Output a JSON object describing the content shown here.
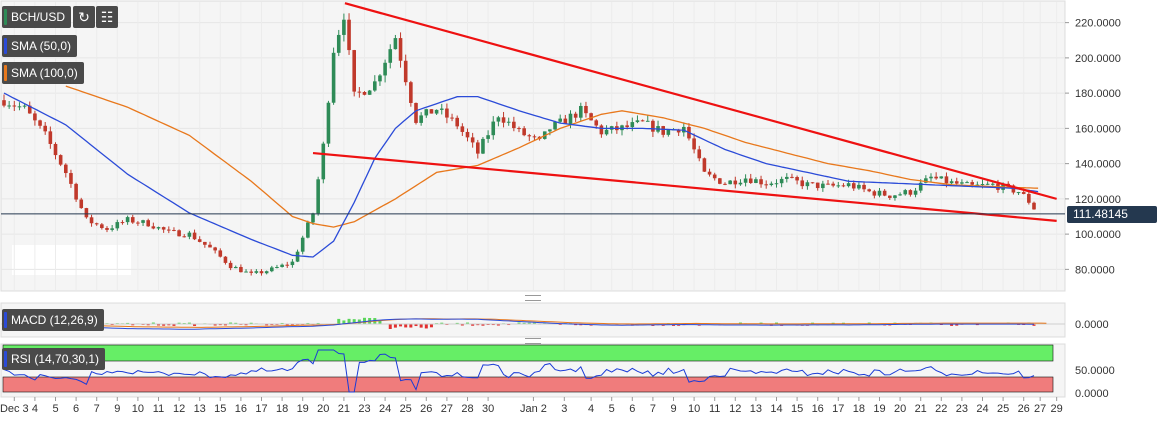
{
  "pair_label": "BCH/USD",
  "indicators": {
    "sma50": {
      "label": "SMA (50,0)",
      "color": "#2b4bd8"
    },
    "sma100": {
      "label": "SMA (100,0)",
      "color": "#e8781c"
    },
    "macd": {
      "label": "MACD (12,26,9)"
    },
    "rsi": {
      "label": "RSI (14,70,30,1)"
    }
  },
  "colors": {
    "up": "#2e8b57",
    "down": "#c0392b",
    "trend": "#ee1111",
    "rsi_high": "#66ee66",
    "rsi_low": "#f07c7c",
    "rsi_line": "#1a3bd6"
  },
  "last_price_label": "111.48145",
  "chart_data": {
    "type": "candlestick",
    "price_axis": {
      "ylim": [
        70,
        230
      ],
      "ticks": [
        "220.0000",
        "200.0000",
        "180.0000",
        "160.0000",
        "140.0000",
        "120.0000",
        "100.0000",
        "80.0000"
      ]
    },
    "macd_axis": {
      "ticks": [
        "0.0000"
      ]
    },
    "rsi_axis": {
      "ticks": [
        "50.0000",
        "0.0000"
      ]
    },
    "x_ticks": [
      "Dec 3",
      "4",
      "5",
      "6",
      "7",
      "9",
      "10",
      "11",
      "12",
      "13",
      "15",
      "16",
      "17",
      "18",
      "19",
      "20",
      "21",
      "23",
      "24",
      "25",
      "26",
      "27",
      "28",
      "30",
      "Jan 2",
      "3",
      "4",
      "5",
      "6",
      "7",
      "9",
      "10",
      "11",
      "12",
      "13",
      "14",
      "15",
      "16",
      "17",
      "18",
      "19",
      "20",
      "21",
      "22",
      "23",
      "24",
      "25",
      "26",
      "27",
      "29"
    ],
    "x_tick_positions": [
      0.5,
      1.5,
      2.5,
      3.5,
      4.5,
      5.5,
      6.5,
      7.5,
      8.5,
      9.5,
      10.5,
      11.5,
      12.5,
      13.5,
      14.5,
      15.5,
      16.5,
      17.5,
      18.5,
      19.5,
      20.5,
      21.5,
      22.5,
      23.5,
      25.7,
      27.2,
      28.5,
      29.5,
      30.5,
      31.5,
      32.5,
      33.5,
      34.5,
      35.5,
      36.5,
      37.5,
      38.5,
      39.5,
      40.5,
      41.5,
      42.5,
      43.5,
      44.5,
      45.5,
      46.5,
      47.5,
      48.5,
      49.5,
      50.3,
      51.1
    ],
    "day_anchors": [
      [
        0,
        176
      ],
      [
        1,
        171
      ],
      [
        2,
        156
      ],
      [
        3,
        135
      ],
      [
        4,
        108
      ],
      [
        5,
        103
      ],
      [
        6,
        108
      ],
      [
        7,
        106
      ],
      [
        8,
        101
      ],
      [
        9,
        100
      ],
      [
        10,
        92
      ],
      [
        11,
        82
      ],
      [
        12,
        77
      ],
      [
        13,
        80
      ],
      [
        14,
        84
      ],
      [
        15,
        112
      ],
      [
        15.5,
        150
      ],
      [
        16,
        205
      ],
      [
        16.5,
        225
      ],
      [
        17,
        178
      ],
      [
        18,
        186
      ],
      [
        19,
        212
      ],
      [
        20,
        165
      ],
      [
        21,
        171
      ],
      [
        22,
        162
      ],
      [
        23,
        146
      ],
      [
        24,
        168
      ],
      [
        25,
        158
      ],
      [
        26,
        152
      ],
      [
        26.5,
        160
      ],
      [
        27,
        163
      ],
      [
        28,
        170
      ],
      [
        29,
        158
      ],
      [
        30,
        160
      ],
      [
        31,
        163
      ],
      [
        32,
        158
      ],
      [
        33,
        161
      ],
      [
        34,
        134
      ],
      [
        35,
        129
      ],
      [
        36,
        132
      ],
      [
        37,
        129
      ],
      [
        38,
        131
      ],
      [
        39,
        128
      ],
      [
        40,
        127
      ],
      [
        41,
        128
      ],
      [
        42,
        124
      ],
      [
        43,
        122
      ],
      [
        44,
        124
      ],
      [
        45,
        132
      ],
      [
        46,
        129
      ],
      [
        47,
        127
      ],
      [
        48,
        128
      ],
      [
        49.3,
        124
      ],
      [
        49.8,
        118
      ],
      [
        50.2,
        111.5
      ]
    ],
    "sma50_anchors": [
      [
        0,
        180
      ],
      [
        3,
        162
      ],
      [
        6,
        134
      ],
      [
        9,
        112
      ],
      [
        12,
        97
      ],
      [
        14,
        88
      ],
      [
        15,
        87
      ],
      [
        16,
        96
      ],
      [
        17,
        118
      ],
      [
        18,
        143
      ],
      [
        19,
        160
      ],
      [
        20,
        170
      ],
      [
        22,
        178
      ],
      [
        23,
        178
      ],
      [
        25,
        170
      ],
      [
        27,
        163
      ],
      [
        29,
        160
      ],
      [
        31,
        160
      ],
      [
        33,
        159
      ],
      [
        35,
        148
      ],
      [
        37,
        140
      ],
      [
        39,
        135
      ],
      [
        41,
        130
      ],
      [
        43,
        129
      ],
      [
        45,
        128
      ],
      [
        47,
        127
      ],
      [
        49,
        126
      ],
      [
        50.3,
        124
      ]
    ],
    "sma100_anchors": [
      [
        3,
        184
      ],
      [
        6,
        172
      ],
      [
        9,
        156
      ],
      [
        12,
        130
      ],
      [
        14,
        110
      ],
      [
        15,
        106
      ],
      [
        16,
        104
      ],
      [
        17,
        107
      ],
      [
        19,
        120
      ],
      [
        21,
        135
      ],
      [
        23,
        139
      ],
      [
        25,
        149
      ],
      [
        27,
        160
      ],
      [
        29,
        168
      ],
      [
        30,
        170
      ],
      [
        32,
        166
      ],
      [
        34,
        160
      ],
      [
        36,
        152
      ],
      [
        38,
        146
      ],
      [
        40,
        140
      ],
      [
        42,
        136
      ],
      [
        44,
        131
      ],
      [
        46,
        128
      ],
      [
        48,
        127
      ],
      [
        50.3,
        126
      ]
    ],
    "trendlines": [
      {
        "from": [
          16.55,
          231
        ],
        "to": [
          51.1,
          120
        ]
      },
      {
        "from": [
          15.0,
          146
        ],
        "to": [
          51.1,
          107.5
        ]
      }
    ],
    "last_price": 111.48145
  }
}
